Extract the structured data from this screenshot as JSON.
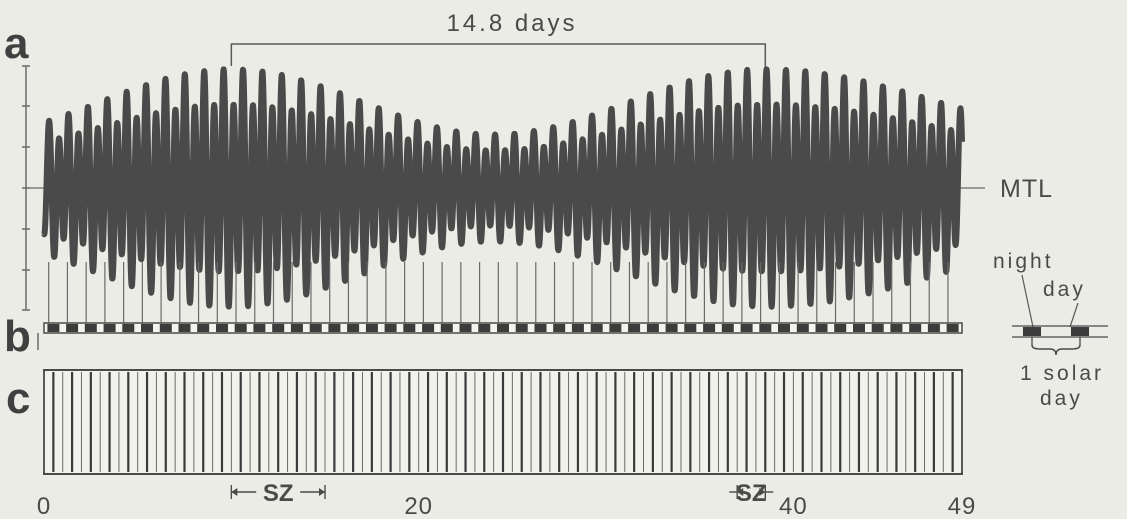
{
  "figure": {
    "panel_labels": [
      "a",
      "b",
      "c"
    ],
    "period_label": "14.8 days",
    "mean_tide_level_label": "MTL",
    "x_axis": {
      "unit": "solar days",
      "range": [
        0,
        49
      ],
      "tick_labels": [
        "0",
        "20",
        "40",
        "49"
      ],
      "tick_values": [
        0,
        20,
        40,
        49
      ]
    },
    "legend": {
      "night_label": "night",
      "day_label": "day",
      "solar_day_label_line1": "1 solar",
      "solar_day_label_line2": "day"
    },
    "sz_markers": [
      {
        "label": "SZ",
        "start_day": 10,
        "end_day": 15
      },
      {
        "label": "SZ",
        "start_day": 37,
        "end_day": 38.5
      }
    ],
    "period_bracket": {
      "start_day": 10,
      "end_day": 38.5
    }
  },
  "chart_data": {
    "type": "line",
    "description_source": "panel a semidiurnal tidal curve",
    "x_unit": "solar days",
    "xlim": [
      0,
      49
    ],
    "lunar_tide_period_days": 0.5175,
    "spring_neap_period_days": 14.8,
    "mean_level": 0,
    "max_amplitude": 1.0,
    "min_amplitude": 0.45,
    "spring_tide_days": [
      10,
      38.5
    ],
    "neap_tide_day": 24
  },
  "colors": {
    "background": "#ecece6",
    "curve": "#4a4a4a",
    "line": "#5a5a5a",
    "night_bar": "#3c3c3c"
  }
}
